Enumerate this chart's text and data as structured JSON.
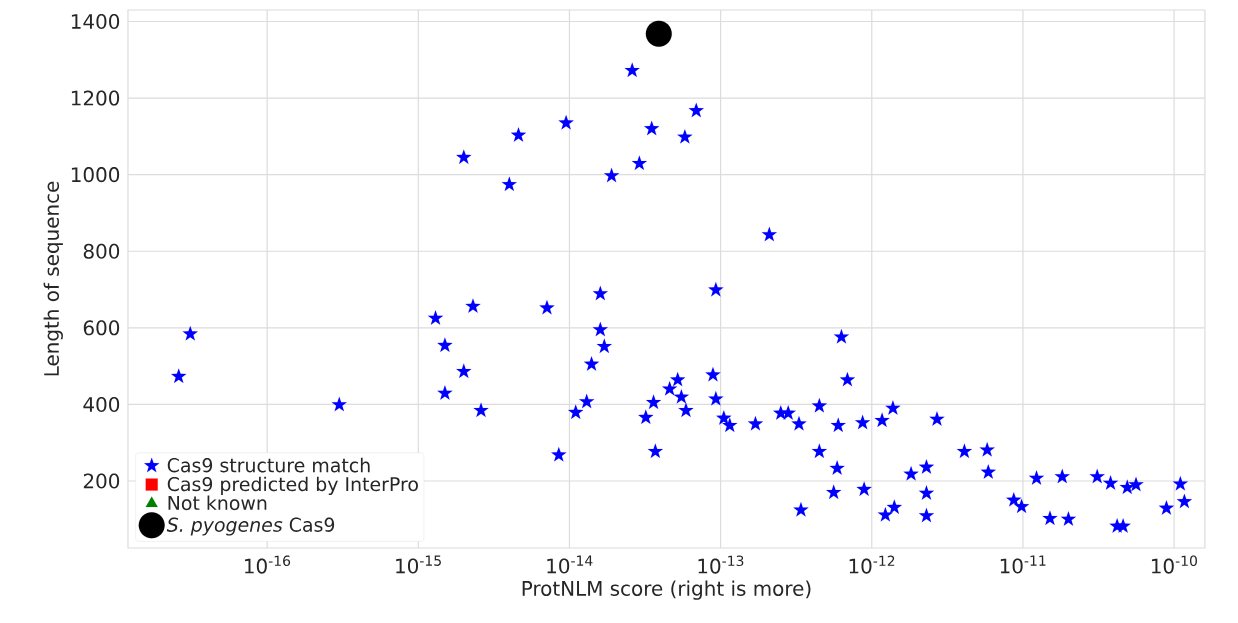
{
  "chart_data": {
    "type": "scatter",
    "xlabel": "ProtNLM score (right is more)",
    "ylabel": "Length of sequence",
    "log": "x",
    "xlim": [
      1.2e-17,
      1.6e-10
    ],
    "ylim": [
      25,
      1430
    ],
    "xticks": [
      {
        "value": 1e-16,
        "label": "10$^{-16}$"
      },
      {
        "value": 1e-15,
        "label": "10$^{-15}$"
      },
      {
        "value": 1e-14,
        "label": "10$^{-14}$"
      },
      {
        "value": 1e-13,
        "label": "10$^{-13}$"
      },
      {
        "value": 1e-12,
        "label": "10$^{-12}$"
      },
      {
        "value": 1e-11,
        "label": "10$^{-11}$"
      },
      {
        "value": 1e-10,
        "label": "10$^{-10}$"
      }
    ],
    "yticks": [
      200,
      400,
      600,
      800,
      1000,
      1200,
      1400
    ],
    "grid": true,
    "legend": "bottom left",
    "series": [
      {
        "name": "Cas9 structure match",
        "color": "#0000ff",
        "marker": "star",
        "x": [
          2e-15,
          4.6e-15,
          9.5e-15,
          4e-15,
          2.6e-14,
          6.9e-14,
          3.5e-14,
          5.8e-14,
          2.9e-14,
          1.9e-14,
          2.1e-13,
          3.1e-17,
          2.6e-17,
          3e-16,
          1.3e-15,
          2.3e-15,
          7.1e-15,
          1.6e-14,
          1.5e-15,
          1.6e-14,
          2e-15,
          1.4e-14,
          1.5e-15,
          2.6e-15,
          1.3e-14,
          1.1e-14,
          8.5e-15,
          1.7e-14,
          9.3e-14,
          8.9e-14,
          6.3e-13,
          6.9e-13,
          5.2e-14,
          4.6e-14,
          3.6e-14,
          5.5e-14,
          5.9e-14,
          3.2e-14,
          9.3e-14,
          1.05e-13,
          1.15e-13,
          1.7e-13,
          2.5e-13,
          2.8e-13,
          3.3e-13,
          4.5e-13,
          6e-13,
          8.7e-13,
          1.17e-12,
          1.38e-12,
          3.7e-14,
          4.5e-13,
          5.9e-13,
          5.6e-13,
          8.9e-13,
          3.4e-13,
          1.23e-12,
          1.41e-12,
          1.82e-12,
          2.7e-12,
          2.3e-12,
          4.1e-12,
          5.8e-12,
          5.9e-12,
          2.3e-12,
          2.3e-12,
          8.7e-12,
          9.8e-12,
          1.23e-11,
          1.51e-11,
          1.82e-11,
          2e-11,
          3.1e-11,
          3.8e-11,
          4.9e-11,
          5.6e-11,
          4.2e-11,
          4.6e-11,
          8.9e-11,
          1.1e-10,
          1.17e-10
        ],
        "values": [
          1045,
          1103,
          1135,
          974,
          1272,
          1167,
          1120,
          1098,
          1029,
          997,
          843,
          584,
          473,
          399,
          625,
          656,
          652,
          689,
          554,
          595,
          486,
          505,
          429,
          384,
          407,
          379,
          268,
          551,
          699,
          477,
          576,
          464,
          464,
          440,
          405,
          419,
          384,
          366,
          414,
          364,
          345,
          349,
          377,
          377,
          349,
          396,
          345,
          352,
          358,
          390,
          277,
          277,
          233,
          170,
          178,
          124,
          111,
          131,
          218,
          361,
          236,
          277,
          281,
          223,
          168,
          109,
          150,
          133,
          207,
          102,
          211,
          100,
          211,
          194,
          183,
          190,
          82,
          82,
          129,
          192,
          146
        ]
      },
      {
        "name": "Cas9 predicted by InterPro",
        "color": "#ff0000",
        "marker": "square"
      },
      {
        "name": "Not known",
        "color": "#008000",
        "marker": "triangle"
      },
      {
        "name": "*S. pyogenes* Cas9",
        "color": "#000000",
        "marker": "circle",
        "x": [
          3.9e-14
        ],
        "values": [
          1368
        ]
      }
    ]
  }
}
